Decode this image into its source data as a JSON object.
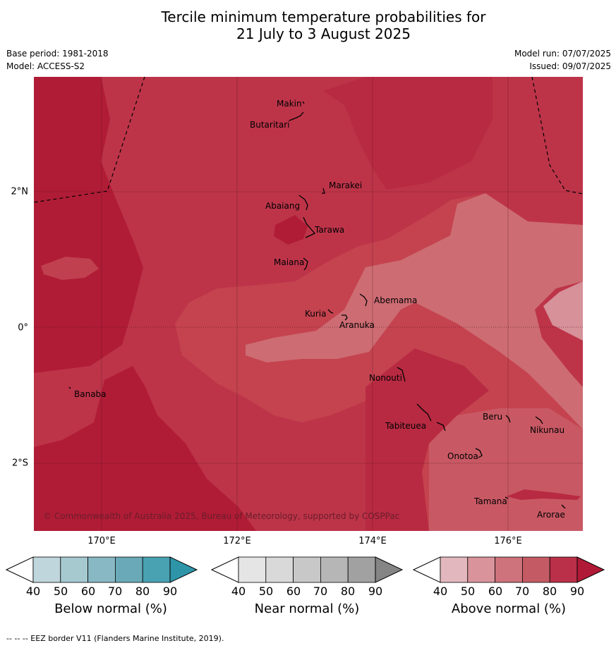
{
  "title": {
    "line1": "Tercile minimum temperature probabilities for",
    "line2": "21 July to 3 August 2025"
  },
  "meta": {
    "base_period": "Base period: 1981-2018",
    "model": "Model: ACCESS-S2",
    "model_run": "Model run: 07/07/2025",
    "issued": "Issued: 09/07/2025"
  },
  "map": {
    "lon_labels": [
      "170°E",
      "172°E",
      "174°E",
      "176°E"
    ],
    "lat_labels": [
      "2°N",
      "0°",
      "2°S"
    ],
    "islands": [
      {
        "name": "Makin"
      },
      {
        "name": "Butaritari"
      },
      {
        "name": "Marakei"
      },
      {
        "name": "Abaiang"
      },
      {
        "name": "Tarawa"
      },
      {
        "name": "Maiana"
      },
      {
        "name": "Abemama"
      },
      {
        "name": "Kuria"
      },
      {
        "name": "Aranuka"
      },
      {
        "name": "Banaba"
      },
      {
        "name": "Nonouti"
      },
      {
        "name": "Tabiteuea"
      },
      {
        "name": "Beru"
      },
      {
        "name": "Nikunau"
      },
      {
        "name": "Onotoa"
      },
      {
        "name": "Tamana"
      },
      {
        "name": "Arorae"
      }
    ],
    "copyright": "© Commonwealth of Australia 2025, Bureau of Meteorology, supported by COSPPac",
    "colors": {
      "above_90": "#b01c36",
      "above_80": "#bd3449",
      "above_70": "#c85964",
      "above_60": "#cf7178",
      "above_50": "#d8949a"
    }
  },
  "colorbars": [
    {
      "title": "Below normal (%)",
      "ticks": [
        "40",
        "50",
        "60",
        "70",
        "80",
        "90"
      ],
      "colors": [
        "#c0d6dd",
        "#a6c9d0",
        "#88b8c4",
        "#6aaab8",
        "#48a2b2",
        "#2e95a8"
      ]
    },
    {
      "title": "Near normal (%)",
      "ticks": [
        "40",
        "50",
        "60",
        "70",
        "80",
        "90"
      ],
      "colors": [
        "#e5e5e5",
        "#d9d9d9",
        "#c8c8c8",
        "#b6b6b6",
        "#a1a1a1",
        "#858585"
      ]
    },
    {
      "title": "Above normal (%)",
      "ticks": [
        "40",
        "50",
        "60",
        "70",
        "80",
        "90"
      ],
      "colors": [
        "#e2b7bd",
        "#d9949b",
        "#ce727b",
        "#c45b64",
        "#b93048",
        "#b01a36"
      ]
    }
  ],
  "footnote": "--  --  -- EEZ border V11 (Flanders Marine Institute, 2019)."
}
